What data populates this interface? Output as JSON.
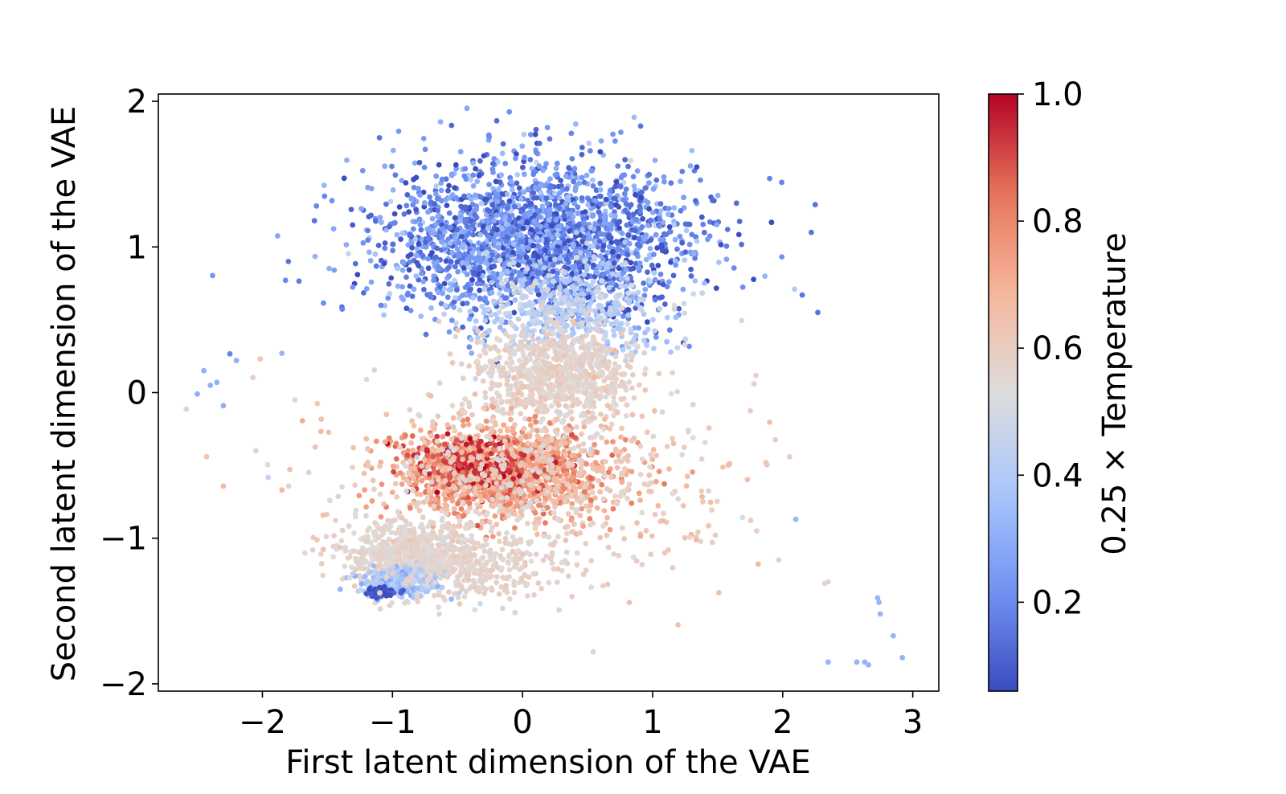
{
  "chart_data": {
    "type": "scatter",
    "title": "",
    "xlabel": "First latent dimension of the VAE",
    "ylabel": "Second latent dimension of the VAE",
    "xlim": [
      -2.8,
      3.2
    ],
    "ylim": [
      -2.05,
      2.05
    ],
    "x_ticks": [
      -2,
      -1,
      0,
      1,
      2,
      3
    ],
    "x_tick_labels": [
      "−2",
      "−1",
      "0",
      "1",
      "2",
      "3"
    ],
    "y_ticks": [
      -2,
      -1,
      0,
      1,
      2
    ],
    "y_tick_labels": [
      "−2",
      "−1",
      "0",
      "1",
      "2"
    ],
    "grid": false,
    "colormap": "coolwarm",
    "colorbar": {
      "label": "0.25 × Temperature",
      "range": [
        0.06,
        1.0
      ],
      "ticks": [
        0.2,
        0.4,
        0.6,
        0.8,
        1.0
      ],
      "tick_labels": [
        "0.2",
        "0.4",
        "0.6",
        "0.8",
        "1.0"
      ],
      "colors": [
        "#3b4cc0",
        "#7093f3",
        "#aac7fd",
        "#dddcdc",
        "#f7b89c",
        "#e7745b",
        "#b40426"
      ]
    },
    "clusters": [
      {
        "cx": 0.1,
        "cy": 1.05,
        "sx": 0.6,
        "sy": 0.28,
        "n": 2300,
        "c": 0.2,
        "cs": 0.1
      },
      {
        "cx": 0.35,
        "cy": 0.55,
        "sx": 0.35,
        "sy": 0.16,
        "n": 450,
        "c": 0.44,
        "cs": 0.05
      },
      {
        "cx": 0.25,
        "cy": 0.12,
        "sx": 0.3,
        "sy": 0.15,
        "n": 700,
        "c": 0.57,
        "cs": 0.025
      },
      {
        "cx": -0.15,
        "cy": -0.55,
        "sx": 0.4,
        "sy": 0.15,
        "n": 1300,
        "c": 0.74,
        "cs": 0.06
      },
      {
        "cx": -0.35,
        "cy": -0.5,
        "sx": 0.24,
        "sy": 0.09,
        "n": 220,
        "c": 0.92,
        "cs": 0.05
      },
      {
        "cx": 0.0,
        "cy": -0.55,
        "sx": 0.8,
        "sy": 0.35,
        "n": 600,
        "c": 0.6,
        "cs": 0.05
      },
      {
        "cx": -0.85,
        "cy": -1.12,
        "sx": 0.28,
        "sy": 0.12,
        "n": 700,
        "c": 0.56,
        "cs": 0.025
      },
      {
        "cx": -0.95,
        "cy": -1.3,
        "sx": 0.16,
        "sy": 0.05,
        "n": 220,
        "c": 0.38,
        "cs": 0.05
      },
      {
        "cx": -1.08,
        "cy": -1.37,
        "sx": 0.06,
        "sy": 0.015,
        "n": 80,
        "c": 0.08,
        "cs": 0.03
      },
      {
        "cx": -0.3,
        "cy": -1.2,
        "sx": 0.35,
        "sy": 0.12,
        "n": 250,
        "c": 0.57,
        "cs": 0.02
      }
    ],
    "outliers": [
      {
        "x": -2.5,
        "y": -0.01,
        "c": 0.3
      },
      {
        "x": -2.45,
        "y": 0.15,
        "c": 0.3
      },
      {
        "x": -2.4,
        "y": 0.05,
        "c": 0.3
      },
      {
        "x": -2.35,
        "y": 0.07,
        "c": 0.3
      },
      {
        "x": -2.3,
        "y": -0.09,
        "c": 0.3
      },
      {
        "x": -2.2,
        "y": 0.22,
        "c": 0.3
      },
      {
        "x": -1.85,
        "y": 0.27,
        "c": 0.32
      },
      {
        "x": -2.05,
        "y": -0.4,
        "c": 0.58
      },
      {
        "x": -1.75,
        "y": -0.05,
        "c": 0.58
      },
      {
        "x": -1.8,
        "y": 0.9,
        "c": 0.15
      },
      {
        "x": -1.6,
        "y": 1.18,
        "c": 0.15
      },
      {
        "x": -1.1,
        "y": 1.75,
        "c": 0.15
      },
      {
        "x": 2.1,
        "y": -0.87,
        "c": 0.32
      },
      {
        "x": 1.8,
        "y": -0.95,
        "c": 0.58
      },
      {
        "x": 1.97,
        "y": -1.15,
        "c": 0.58
      },
      {
        "x": 2.35,
        "y": -1.3,
        "c": 0.58
      },
      {
        "x": 2.35,
        "y": -1.85,
        "c": 0.32
      },
      {
        "x": 2.57,
        "y": -1.85,
        "c": 0.32
      },
      {
        "x": 2.63,
        "y": -1.85,
        "c": 0.32
      },
      {
        "x": 2.66,
        "y": -1.87,
        "c": 0.32
      },
      {
        "x": 2.73,
        "y": -1.41,
        "c": 0.32
      },
      {
        "x": 2.74,
        "y": -1.44,
        "c": 0.32
      },
      {
        "x": 2.75,
        "y": -1.52,
        "c": 0.32
      },
      {
        "x": 2.85,
        "y": -1.67,
        "c": 0.32
      },
      {
        "x": 2.92,
        "y": -1.82,
        "c": 0.32
      },
      {
        "x": 2.27,
        "y": 0.55,
        "c": 0.15
      },
      {
        "x": 2.25,
        "y": 1.29,
        "c": 0.15
      },
      {
        "x": 2.22,
        "y": 1.1,
        "c": 0.15
      },
      {
        "x": 2.15,
        "y": 0.67,
        "c": 0.15
      },
      {
        "x": 1.9,
        "y": 1.47,
        "c": 0.18
      }
    ]
  }
}
